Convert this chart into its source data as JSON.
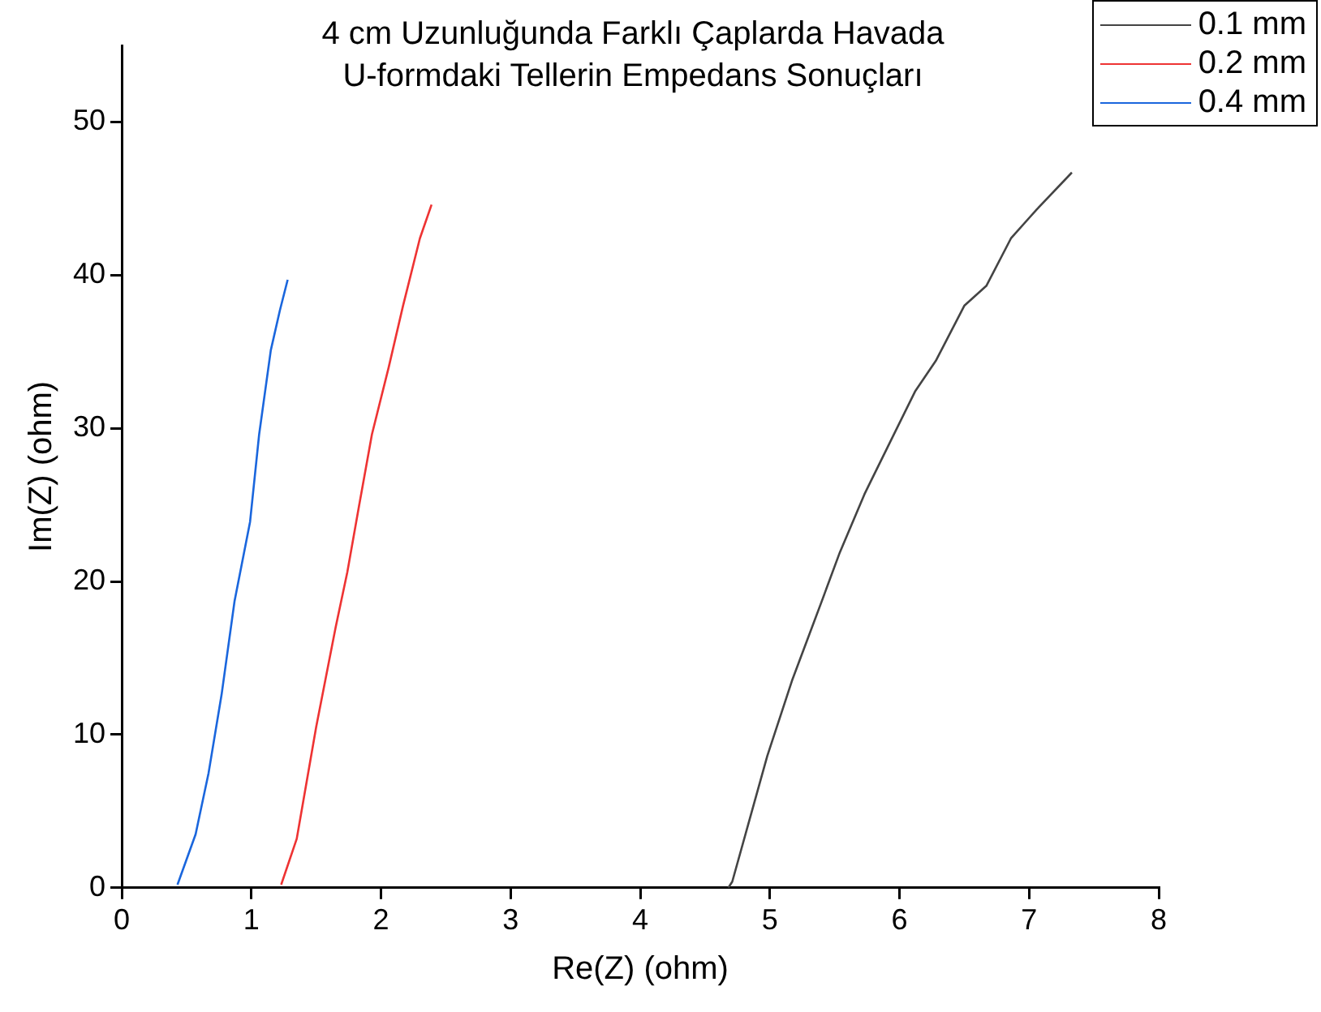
{
  "chart_data": {
    "type": "line",
    "title": "4 cm Uzunluğunda Farklı Çaplarda Havada\nU-formdaki Tellerin Empedans Sonuçları",
    "xlabel": "Re(Z) (ohm)",
    "ylabel": "Im(Z) (ohm)",
    "xlim": [
      0,
      8
    ],
    "xticks": [
      0,
      1,
      2,
      3,
      4,
      5,
      6,
      7,
      8
    ],
    "ylim": [
      0,
      55
    ],
    "yticks": [
      0,
      10,
      20,
      30,
      40,
      50
    ],
    "grid": false,
    "legend": "top right",
    "marker": "none",
    "line_style": "solid",
    "series": [
      {
        "name": "0.1 mm",
        "color": "#444444",
        "x": [
          4.68,
          4.71,
          4.98,
          5.17,
          5.4,
          5.54,
          5.73,
          5.91,
          6.12,
          6.28,
          6.5,
          6.67,
          6.86,
          7.06,
          7.33
        ],
        "values": [
          0,
          0.4,
          8.6,
          13.5,
          18.7,
          21.9,
          25.7,
          28.8,
          32.4,
          34.4,
          38,
          39.3,
          42.4,
          44.3,
          46.7
        ]
      },
      {
        "name": "0.2 mm",
        "color": "#ee3333",
        "x": [
          1.23,
          1.35,
          1.5,
          1.65,
          1.74,
          1.83,
          1.93,
          2.06,
          2.17,
          2.3,
          2.39
        ],
        "values": [
          0.2,
          3.2,
          10.5,
          17,
          20.6,
          24.9,
          29.6,
          34,
          38,
          42.4,
          44.6
        ]
      },
      {
        "name": "0.4 mm",
        "color": "#1a66dd",
        "x": [
          0.43,
          0.57,
          0.67,
          0.77,
          0.87,
          0.99,
          1.06,
          1.15,
          1.22,
          1.28
        ],
        "values": [
          0.2,
          3.5,
          7.5,
          12.6,
          18.7,
          23.9,
          29.6,
          35.1,
          37.7,
          39.7
        ]
      }
    ]
  }
}
